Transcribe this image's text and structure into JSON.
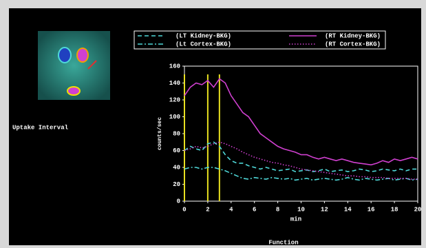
{
  "side_label": "Uptake Interval",
  "footer": "Function",
  "chart_data": {
    "type": "line",
    "xlabel": "min",
    "ylabel": "counts/sec",
    "x": [
      0,
      0.5,
      1,
      1.5,
      2,
      2.5,
      3,
      3.5,
      4,
      4.5,
      5,
      5.5,
      6,
      6.5,
      7,
      7.5,
      8,
      8.5,
      9,
      9.5,
      10,
      10.5,
      11,
      11.5,
      12,
      12.5,
      13,
      13.5,
      14,
      14.5,
      15,
      15.5,
      16,
      16.5,
      17,
      17.5,
      18,
      18.5,
      19,
      19.5,
      20
    ],
    "series": [
      {
        "name": "(LT Kidney-BKG)",
        "color": "#4fd8d8",
        "dash": "dashed",
        "values": [
          60,
          65,
          62,
          60,
          68,
          70,
          65,
          55,
          48,
          45,
          45,
          42,
          40,
          38,
          40,
          38,
          36,
          37,
          38,
          35,
          36,
          37,
          35,
          36,
          38,
          35,
          36,
          37,
          35,
          36,
          38,
          37,
          35,
          36,
          38,
          37,
          36,
          38,
          36,
          38,
          38
        ]
      },
      {
        "name": "(RT Kidney-BKG)",
        "color": "#d040d0",
        "dash": "solid",
        "values": [
          125,
          135,
          140,
          138,
          143,
          135,
          145,
          140,
          125,
          115,
          105,
          100,
          90,
          80,
          75,
          70,
          65,
          62,
          60,
          58,
          55,
          55,
          52,
          50,
          52,
          50,
          48,
          50,
          48,
          46,
          45,
          44,
          43,
          45,
          48,
          46,
          50,
          48,
          50,
          52,
          50
        ]
      },
      {
        "name": "(Lt Cortex-BKG)",
        "color": "#4fd8d8",
        "dash": "dashdot",
        "values": [
          38,
          40,
          40,
          38,
          40,
          40,
          38,
          36,
          33,
          30,
          27,
          26,
          28,
          27,
          26,
          28,
          27,
          26,
          27,
          25,
          26,
          27,
          25,
          26,
          27,
          26,
          25,
          26,
          28,
          26,
          25,
          27,
          26,
          25,
          26,
          27,
          25,
          26,
          27,
          25,
          26
        ]
      },
      {
        "name": "(RT Cortex-BKG)",
        "color": "#d040d0",
        "dash": "dotted",
        "values": [
          60,
          62,
          65,
          63,
          65,
          68,
          70,
          68,
          65,
          62,
          58,
          55,
          52,
          50,
          48,
          46,
          45,
          43,
          42,
          40,
          38,
          37,
          36,
          35,
          34,
          33,
          32,
          31,
          30,
          30,
          29,
          29,
          28,
          28,
          28,
          27,
          27,
          27,
          27,
          26,
          26
        ]
      }
    ],
    "markers": [
      0,
      2,
      3
    ],
    "marker_color": "#e8e020",
    "xlim": [
      0,
      20
    ],
    "xticks": [
      0,
      2,
      4,
      6,
      8,
      10,
      12,
      14,
      16,
      18,
      20
    ],
    "ylim": [
      0,
      160
    ],
    "yticks": [
      0,
      20,
      40,
      60,
      80,
      100,
      120,
      140,
      160
    ]
  }
}
